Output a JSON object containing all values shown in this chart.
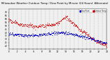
{
  "title": "Milwaukee Weather Outdoor Temp / Dew Point by Minute (24 Hours) (Alternate)",
  "background_color": "#f0f0f0",
  "plot_bg_color": "#f0f0f0",
  "grid_color": "#888888",
  "temp_color": "#dd0000",
  "dew_color": "#0000cc",
  "legend_temp_label": "Outdoor Temp",
  "legend_dew_label": "Dew Point",
  "tick_fontsize": 2.2,
  "title_fontsize": 2.8,
  "ylim": [
    15,
    75
  ],
  "xlim": [
    0,
    1440
  ],
  "yticks": [
    20,
    25,
    30,
    35,
    40,
    45,
    50,
    55,
    60,
    65,
    70
  ],
  "xtick_hours": [
    0,
    60,
    120,
    180,
    240,
    300,
    360,
    420,
    480,
    540,
    600,
    660,
    720,
    780,
    840,
    900,
    960,
    1020,
    1080,
    1140,
    1200,
    1260,
    1320,
    1380,
    1440
  ],
  "vgrid_positions": [
    60,
    120,
    180,
    240,
    300,
    360,
    420,
    480,
    540,
    600,
    660,
    720,
    780,
    840,
    900,
    960,
    1020,
    1080,
    1140,
    1200,
    1260,
    1320,
    1380
  ],
  "seed": 7,
  "temp_keypoints_x": [
    0,
    60,
    180,
    300,
    420,
    540,
    660,
    720,
    780,
    840,
    900,
    960,
    1020,
    1080,
    1140,
    1200,
    1260,
    1320,
    1380,
    1440
  ],
  "temp_keypoints_y": [
    58,
    56,
    52,
    50,
    49,
    50,
    52,
    54,
    60,
    63,
    58,
    52,
    46,
    42,
    38,
    33,
    28,
    26,
    23,
    22
  ],
  "dew_keypoints_x": [
    0,
    120,
    240,
    360,
    480,
    600,
    720,
    840,
    960,
    1080,
    1200,
    1320,
    1440
  ],
  "dew_keypoints_y": [
    38,
    37,
    36,
    36,
    37,
    38,
    40,
    39,
    37,
    34,
    31,
    27,
    24
  ]
}
